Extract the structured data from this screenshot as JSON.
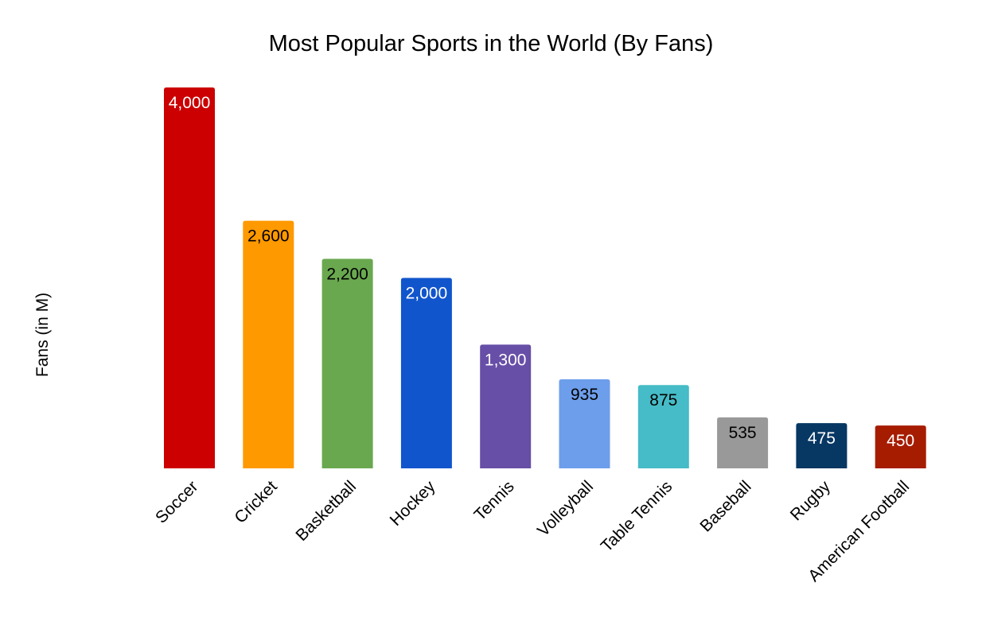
{
  "chart_data": {
    "type": "bar",
    "title": "Most Popular Sports in the World (By Fans)",
    "xlabel": "",
    "ylabel": "Fans (in M)",
    "ylim": [
      0,
      4000
    ],
    "grid": false,
    "legend": "none",
    "categories": [
      "Soccer",
      "Cricket",
      "Basketball",
      "Hockey",
      "Tennis",
      "Volleyball",
      "Table Tennis",
      "Baseball",
      "Rugby",
      "American Football"
    ],
    "values": [
      4000,
      2600,
      2200,
      2000,
      1300,
      935,
      875,
      535,
      475,
      450
    ],
    "value_labels": [
      "4,000",
      "2,600",
      "2,200",
      "2,000",
      "1,300",
      "935",
      "875",
      "535",
      "475",
      "450"
    ],
    "bar_colors": [
      "#cc0000",
      "#ff9900",
      "#6aa84f",
      "#1155cc",
      "#674ea7",
      "#6d9eeb",
      "#45bcc7",
      "#999999",
      "#073763",
      "#a61c00"
    ],
    "label_colors": [
      "#ffffff",
      "#000000",
      "#000000",
      "#ffffff",
      "#ffffff",
      "#000000",
      "#000000",
      "#000000",
      "#ffffff",
      "#ffffff"
    ]
  }
}
